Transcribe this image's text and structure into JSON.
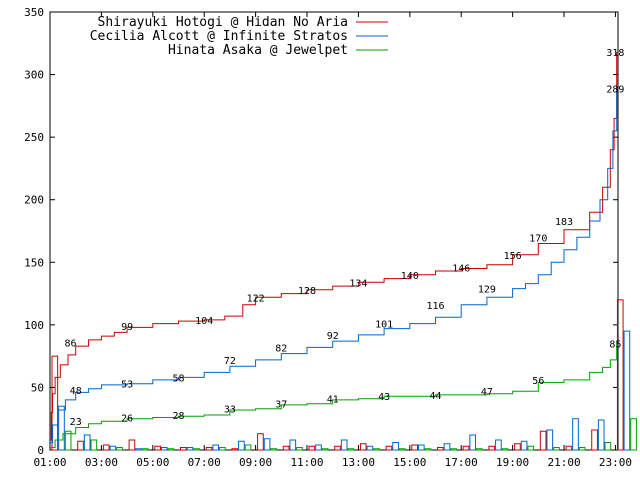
{
  "chart_data": {
    "type": "line",
    "x_tick_labels": [
      "01:00",
      "03:00",
      "05:00",
      "07:00",
      "09:00",
      "11:00",
      "13:00",
      "15:00",
      "17:00",
      "19:00",
      "21:00",
      "23:00"
    ],
    "y_tick_labels": [
      "0",
      "50",
      "100",
      "150",
      "200",
      "250",
      "300",
      "350"
    ],
    "ylim": [
      0,
      350
    ],
    "xlim": [
      1,
      23.1
    ],
    "legend_position": "top-left",
    "series": [
      {
        "name": "Shirayuki Hotogi @ Hidan No Aria",
        "color": "#cc0000",
        "points": [
          [
            1.0,
            8
          ],
          [
            1.05,
            30
          ],
          [
            1.1,
            45
          ],
          [
            1.2,
            58
          ],
          [
            1.4,
            68
          ],
          [
            1.7,
            76
          ],
          [
            2.0,
            83
          ],
          [
            2.5,
            88
          ],
          [
            3.0,
            91
          ],
          [
            3.5,
            94
          ],
          [
            4.0,
            98
          ],
          [
            5.0,
            101
          ],
          [
            6.0,
            103
          ],
          [
            7.0,
            104
          ],
          [
            7.8,
            107
          ],
          [
            8.5,
            116
          ],
          [
            9.0,
            122
          ],
          [
            10.0,
            125
          ],
          [
            11.0,
            128
          ],
          [
            12.0,
            131
          ],
          [
            13.0,
            134
          ],
          [
            14.0,
            137
          ],
          [
            15.0,
            140
          ],
          [
            16.0,
            143
          ],
          [
            17.0,
            145
          ],
          [
            18.0,
            148
          ],
          [
            19.0,
            156
          ],
          [
            20.0,
            165
          ],
          [
            21.0,
            176
          ],
          [
            22.0,
            190
          ],
          [
            22.5,
            210
          ],
          [
            22.8,
            240
          ],
          [
            22.95,
            265
          ],
          [
            23.05,
            318
          ]
        ],
        "labels": [
          [
            1.8,
            86,
            "86"
          ],
          [
            4.0,
            99,
            "99"
          ],
          [
            7.0,
            104,
            "104"
          ],
          [
            9.0,
            122,
            "122"
          ],
          [
            11.0,
            128,
            "128"
          ],
          [
            13.0,
            134,
            "134"
          ],
          [
            15.0,
            140,
            "140"
          ],
          [
            17.0,
            146,
            "146"
          ],
          [
            19.0,
            156,
            "156"
          ],
          [
            21.0,
            183,
            "183"
          ],
          [
            23.0,
            318,
            "318"
          ]
        ]
      },
      {
        "name": "Cecilia Alcott @ Infinite Stratos",
        "color": "#0066cc",
        "points": [
          [
            1.0,
            6
          ],
          [
            1.1,
            20
          ],
          [
            1.3,
            32
          ],
          [
            1.6,
            40
          ],
          [
            2.0,
            46
          ],
          [
            2.5,
            49
          ],
          [
            3.0,
            52
          ],
          [
            4.0,
            53
          ],
          [
            5.0,
            56
          ],
          [
            6.0,
            58
          ],
          [
            7.0,
            62
          ],
          [
            8.0,
            67
          ],
          [
            9.0,
            72
          ],
          [
            10.0,
            77
          ],
          [
            11.0,
            82
          ],
          [
            12.0,
            87
          ],
          [
            13.0,
            92
          ],
          [
            14.0,
            97
          ],
          [
            15.0,
            101
          ],
          [
            16.0,
            106
          ],
          [
            17.0,
            116
          ],
          [
            18.0,
            122
          ],
          [
            19.0,
            129
          ],
          [
            19.5,
            133
          ],
          [
            20.0,
            140
          ],
          [
            20.5,
            150
          ],
          [
            21.0,
            160
          ],
          [
            21.5,
            170
          ],
          [
            22.0,
            183
          ],
          [
            22.4,
            200
          ],
          [
            22.7,
            225
          ],
          [
            22.9,
            255
          ],
          [
            23.05,
            289
          ]
        ],
        "labels": [
          [
            2.0,
            48,
            "48"
          ],
          [
            4.0,
            53,
            "53"
          ],
          [
            6.0,
            58,
            "58"
          ],
          [
            8.0,
            72,
            "72"
          ],
          [
            10.0,
            82,
            "82"
          ],
          [
            12.0,
            92,
            "92"
          ],
          [
            14.0,
            101,
            "101"
          ],
          [
            16.0,
            116,
            "116"
          ],
          [
            18.0,
            129,
            "129"
          ],
          [
            20.0,
            170,
            "170"
          ],
          [
            23.0,
            289,
            "289"
          ]
        ]
      },
      {
        "name": "Hinata Asaka @ Jewelpet",
        "color": "#00a000",
        "points": [
          [
            1.0,
            2
          ],
          [
            1.2,
            8
          ],
          [
            1.5,
            13
          ],
          [
            2.0,
            18
          ],
          [
            2.5,
            21
          ],
          [
            3.0,
            23
          ],
          [
            4.0,
            25
          ],
          [
            5.0,
            26
          ],
          [
            6.0,
            27
          ],
          [
            7.0,
            28
          ],
          [
            8.0,
            32
          ],
          [
            9.0,
            33
          ],
          [
            10.0,
            36
          ],
          [
            11.0,
            37
          ],
          [
            12.0,
            40
          ],
          [
            13.0,
            41
          ],
          [
            14.0,
            43
          ],
          [
            15.0,
            43
          ],
          [
            16.0,
            44
          ],
          [
            17.0,
            44
          ],
          [
            18.0,
            45
          ],
          [
            19.0,
            47
          ],
          [
            20.0,
            54
          ],
          [
            21.0,
            56
          ],
          [
            22.0,
            62
          ],
          [
            22.5,
            66
          ],
          [
            22.8,
            72
          ],
          [
            23.05,
            85
          ]
        ],
        "labels": [
          [
            2.0,
            23,
            "23"
          ],
          [
            4.0,
            26,
            "26"
          ],
          [
            6.0,
            28,
            "28"
          ],
          [
            8.0,
            33,
            "33"
          ],
          [
            10.0,
            37,
            "37"
          ],
          [
            12.0,
            41,
            "41"
          ],
          [
            14.0,
            43,
            "43"
          ],
          [
            16.0,
            44,
            "44"
          ],
          [
            18.0,
            47,
            "47"
          ],
          [
            20.0,
            56,
            "56"
          ],
          [
            23.0,
            85,
            "85"
          ]
        ]
      }
    ],
    "hourly_bars": [
      {
        "hour": 1,
        "values": [
          75,
          35,
          15
        ]
      },
      {
        "hour": 2,
        "values": [
          7,
          12,
          8
        ]
      },
      {
        "hour": 3,
        "values": [
          4,
          3,
          2
        ]
      },
      {
        "hour": 4,
        "values": [
          8,
          1,
          1
        ]
      },
      {
        "hour": 5,
        "values": [
          3,
          2,
          1
        ]
      },
      {
        "hour": 6,
        "values": [
          2,
          2,
          1
        ]
      },
      {
        "hour": 7,
        "values": [
          2,
          4,
          2
        ]
      },
      {
        "hour": 8,
        "values": [
          1,
          7,
          4
        ]
      },
      {
        "hour": 9,
        "values": [
          13,
          9,
          1
        ]
      },
      {
        "hour": 10,
        "values": [
          3,
          8,
          2
        ]
      },
      {
        "hour": 11,
        "values": [
          3,
          4,
          1
        ]
      },
      {
        "hour": 12,
        "values": [
          3,
          8,
          1
        ]
      },
      {
        "hour": 13,
        "values": [
          5,
          3,
          1
        ]
      },
      {
        "hour": 14,
        "values": [
          3,
          6,
          1
        ]
      },
      {
        "hour": 15,
        "values": [
          4,
          4,
          1
        ]
      },
      {
        "hour": 16,
        "values": [
          2,
          5,
          1
        ]
      },
      {
        "hour": 17,
        "values": [
          3,
          12,
          1
        ]
      },
      {
        "hour": 18,
        "values": [
          3,
          8,
          1
        ]
      },
      {
        "hour": 19,
        "values": [
          5,
          7,
          3
        ]
      },
      {
        "hour": 20,
        "values": [
          15,
          16,
          2
        ]
      },
      {
        "hour": 21,
        "values": [
          3,
          25,
          2
        ]
      },
      {
        "hour": 22,
        "values": [
          16,
          24,
          6
        ]
      },
      {
        "hour": 23,
        "values": [
          120,
          95,
          25
        ]
      }
    ]
  }
}
